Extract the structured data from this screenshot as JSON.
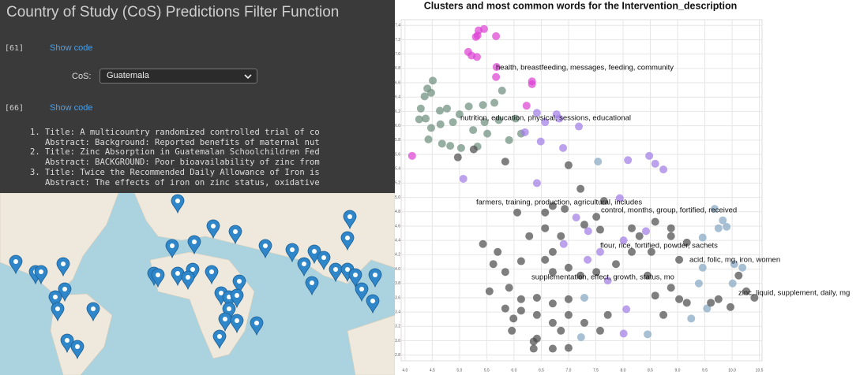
{
  "notebook": {
    "title": "Country of Study (CoS) Predictions Filter Function",
    "cells": [
      {
        "prompt": "[61]",
        "link": "Show code"
      },
      {
        "prompt": "[66]",
        "link": "Show code"
      }
    ],
    "filter": {
      "label": "CoS:",
      "value": "Guatemala"
    },
    "results": [
      {
        "number": "1.",
        "title": "Title: A multicountry randomized controlled trial of co",
        "abstract": "Abstract: Background: Reported benefits of maternal nut"
      },
      {
        "number": "2.",
        "title": "Title: Zinc Absorption in Guatemalan Schoolchildren Fed",
        "abstract": "Abstract: BACKGROUND: Poor bioavailability of zinc from"
      },
      {
        "number": "3.",
        "title": "Title: Twice the Recommended Daily Allowance of Iron is",
        "abstract": "Abstract: The effects of iron on zinc status, oxidative"
      }
    ]
  },
  "chart_data": {
    "type": "scatter",
    "title": "Clusters and most common words for the Intervention_description",
    "xlim": [
      3.93,
      10.55
    ],
    "ylim": [
      2.72,
      7.48
    ],
    "grid": true,
    "xticks": [
      {
        "value": 4,
        "label": "4.0"
      },
      4.5,
      {
        "value": 5,
        "label": "5.0"
      },
      5.5,
      {
        "value": 6,
        "label": "6.0"
      },
      6.5,
      {
        "value": 7,
        "label": "7.0"
      },
      7.5,
      {
        "value": 8,
        "label": "8.0"
      },
      8.5,
      {
        "value": 9,
        "label": "9.0"
      },
      9.5,
      {
        "value": 10,
        "label": "10.0"
      },
      10.5
    ],
    "yticks": [
      2.8,
      {
        "value": 3,
        "label": "3.0"
      },
      3.2,
      3.4,
      3.6,
      3.8,
      {
        "value": 4,
        "label": "4.0"
      },
      4.2,
      4.4,
      4.6,
      4.8,
      {
        "value": 5,
        "label": "5.0"
      },
      5.2,
      5.4,
      5.6,
      5.8,
      {
        "value": 6,
        "label": "6.0"
      },
      6.2,
      6.4,
      6.6,
      6.8,
      {
        "value": 7,
        "label": "7.0"
      },
      7.2,
      7.4
    ],
    "annotations": [
      "health, breastfeeding, messages, feeding, community",
      "nutrition, education, physical, sessions, educational",
      "farmers, training, production, agricultural, includes",
      "control, months, group, fortified, received",
      "flour, rice, fortified, powder, sachets",
      "acid, folic, mg, iron, women",
      "supplementation, effect, growth, status, mo",
      "zinc, liquid, supplement, daily, mg"
    ],
    "series": [
      {
        "color": "#dd44d4",
        "x": [
          5.35,
          5.45,
          5.33,
          5.67,
          5.3,
          5.16,
          5.32,
          5.68,
          5.67,
          6.33,
          6.33,
          6.23,
          4.13,
          5.22
        ],
        "y": [
          7.33,
          7.35,
          7.26,
          7.25,
          7.24,
          7.03,
          6.96,
          6.82,
          6.68,
          6.62,
          6.58,
          6.28,
          5.58,
          6.98
        ]
      },
      {
        "color": "#6f8f80",
        "x": [
          4.51,
          4.41,
          4.36,
          4.48,
          4.29,
          4.64,
          4.26,
          4.77,
          4.88,
          4.65,
          4.48,
          4.38,
          5.0,
          5.17,
          5.43,
          5.64,
          5.78,
          5.46,
          5.72,
          6.03,
          6.13,
          5.91,
          5.51,
          5.25,
          5.03,
          5.33,
          4.68,
          4.43,
          4.83
        ],
        "y": [
          6.63,
          6.52,
          6.41,
          6.46,
          6.24,
          6.21,
          6.09,
          6.24,
          6.05,
          6.02,
          5.97,
          6.1,
          6.16,
          6.27,
          6.29,
          6.32,
          6.49,
          6.05,
          6.08,
          6.1,
          5.89,
          5.8,
          5.89,
          5.94,
          5.69,
          5.71,
          5.75,
          5.81,
          5.72
        ]
      },
      {
        "color": "#a27ee6",
        "x": [
          6.42,
          6.57,
          6.78,
          6.83,
          6.2,
          6.49,
          7.19,
          6.9,
          8.09,
          8.48,
          8.59,
          8.74,
          7.94,
          7.14,
          7.36,
          6.91,
          8.01,
          7.58,
          7.35,
          7.72,
          8.06,
          8.01,
          6.42,
          5.07,
          8.42
        ],
        "y": [
          6.18,
          6.05,
          6.16,
          6.1,
          5.91,
          5.78,
          5.99,
          5.69,
          5.52,
          5.58,
          5.47,
          5.39,
          4.99,
          4.72,
          4.53,
          4.35,
          4.4,
          4.24,
          4.13,
          3.84,
          3.44,
          3.1,
          5.2,
          5.26,
          4.53
        ]
      },
      {
        "color": "#86a8c4",
        "x": [
          7.54,
          9.68,
          9.83,
          9.75,
          9.9,
          10.04,
          10.19,
          9.46,
          9.39,
          10.01,
          9.54,
          9.25,
          7.29,
          7.23,
          8.45,
          9.46
        ],
        "y": [
          5.5,
          4.84,
          4.68,
          4.57,
          4.59,
          4.07,
          4.02,
          4.02,
          3.8,
          3.8,
          3.45,
          3.31,
          3.6,
          3.05,
          3.09,
          4.44
        ]
      },
      {
        "color": "#4d4d4d",
        "x": [
          4.97,
          5.26,
          5.84,
          7.0,
          7.22,
          7.65,
          7.51,
          6.71,
          6.93,
          6.06,
          6.57,
          7.29,
          6.57,
          6.28,
          6.86,
          7.58,
          8.16,
          8.3,
          8.59,
          8.88,
          8.16,
          8.52,
          8.88,
          9.17,
          5.62,
          5.84,
          6.13,
          6.57,
          6.71,
          7.0,
          7.22,
          7.51,
          7.87,
          5.55,
          5.91,
          6.13,
          6.42,
          6.71,
          7.0,
          5.84,
          6.13,
          6.42,
          6.71,
          7.0,
          7.29,
          7.58,
          7.72,
          6.42,
          5.99,
          8.88,
          9.03,
          8.74,
          9.17,
          9.75,
          10.12,
          10.26,
          10.41,
          9.97,
          9.61,
          9.03,
          8.45,
          8.59,
          6.36,
          6.71,
          7.0,
          6.36,
          5.96,
          5.43,
          5.7,
          6.71,
          6.86
        ],
        "y": [
          5.56,
          5.67,
          5.5,
          5.45,
          5.12,
          4.95,
          4.73,
          4.88,
          4.84,
          4.79,
          4.79,
          4.62,
          4.57,
          4.46,
          4.46,
          4.55,
          4.57,
          4.46,
          4.66,
          4.57,
          4.24,
          4.24,
          4.46,
          4.37,
          4.07,
          3.96,
          4.11,
          4.13,
          3.96,
          4.02,
          3.91,
          3.96,
          4.07,
          3.69,
          3.74,
          3.58,
          3.6,
          3.52,
          3.58,
          3.45,
          3.42,
          3.36,
          3.25,
          3.36,
          3.25,
          3.14,
          3.36,
          3.03,
          3.31,
          3.74,
          3.58,
          3.36,
          3.53,
          3.58,
          3.91,
          3.69,
          3.6,
          3.47,
          3.53,
          4.13,
          3.91,
          3.63,
          2.99,
          2.89,
          2.9,
          2.89,
          3.14,
          4.35,
          4.24,
          4.24,
          3.14
        ]
      }
    ]
  }
}
